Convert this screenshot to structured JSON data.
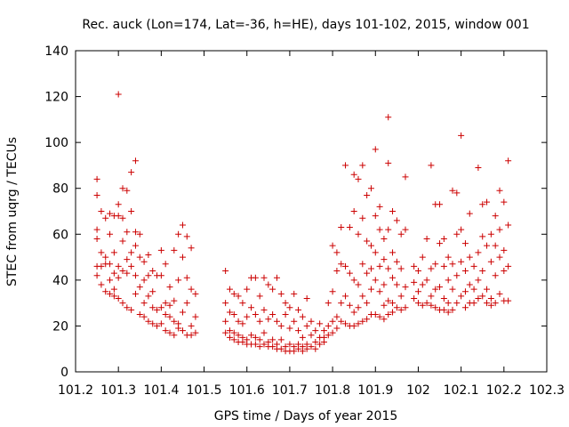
{
  "chart_data": {
    "type": "scatter",
    "title": "Rec. auck (Lon=174, Lat=-36, h=HE), days 101-102, 2015, window 001",
    "xlabel": "GPS time / Days of year 2015",
    "ylabel": "STEC from uqrg / TECUs",
    "xlim": [
      101.2,
      102.3
    ],
    "ylim": [
      0,
      140
    ],
    "xticks": [
      "101.2",
      "101.3",
      "101.4",
      "101.5",
      "101.6",
      "101.7",
      "101.8",
      "101.9",
      "102",
      "102.1",
      "102.2",
      "102.3"
    ],
    "yticks": [
      "0",
      "20",
      "40",
      "60",
      "80",
      "100",
      "120",
      "140"
    ],
    "grid": false,
    "legend": "none",
    "marker": "plus",
    "color": "#cc0000",
    "points": [
      [
        101.25,
        84
      ],
      [
        101.25,
        77
      ],
      [
        101.25,
        62
      ],
      [
        101.25,
        58
      ],
      [
        101.25,
        46
      ],
      [
        101.25,
        42
      ],
      [
        101.26,
        70
      ],
      [
        101.26,
        52
      ],
      [
        101.26,
        46
      ],
      [
        101.26,
        38
      ],
      [
        101.27,
        67
      ],
      [
        101.27,
        50
      ],
      [
        101.27,
        47
      ],
      [
        101.27,
        35
      ],
      [
        101.28,
        69
      ],
      [
        101.28,
        60
      ],
      [
        101.28,
        47
      ],
      [
        101.28,
        40
      ],
      [
        101.28,
        34
      ],
      [
        101.29,
        68
      ],
      [
        101.29,
        52
      ],
      [
        101.29,
        43
      ],
      [
        101.29,
        36
      ],
      [
        101.29,
        33
      ],
      [
        101.3,
        121
      ],
      [
        101.3,
        73
      ],
      [
        101.3,
        68
      ],
      [
        101.3,
        46
      ],
      [
        101.3,
        41
      ],
      [
        101.3,
        32
      ],
      [
        101.31,
        80
      ],
      [
        101.31,
        67
      ],
      [
        101.31,
        57
      ],
      [
        101.31,
        44
      ],
      [
        101.31,
        30
      ],
      [
        101.32,
        79
      ],
      [
        101.32,
        61
      ],
      [
        101.32,
        49
      ],
      [
        101.32,
        43
      ],
      [
        101.32,
        28
      ],
      [
        101.33,
        87
      ],
      [
        101.33,
        70
      ],
      [
        101.33,
        52
      ],
      [
        101.33,
        46
      ],
      [
        101.33,
        27
      ],
      [
        101.34,
        92
      ],
      [
        101.34,
        61
      ],
      [
        101.34,
        55
      ],
      [
        101.34,
        42
      ],
      [
        101.34,
        34
      ],
      [
        101.35,
        60
      ],
      [
        101.35,
        50
      ],
      [
        101.35,
        37
      ],
      [
        101.35,
        25
      ],
      [
        101.36,
        48
      ],
      [
        101.36,
        40
      ],
      [
        101.36,
        30
      ],
      [
        101.36,
        24
      ],
      [
        101.37,
        51
      ],
      [
        101.37,
        42
      ],
      [
        101.37,
        33
      ],
      [
        101.37,
        22
      ],
      [
        101.38,
        44
      ],
      [
        101.38,
        35
      ],
      [
        101.38,
        28
      ],
      [
        101.38,
        21
      ],
      [
        101.39,
        42
      ],
      [
        101.39,
        27
      ],
      [
        101.39,
        20
      ],
      [
        101.4,
        53
      ],
      [
        101.4,
        42
      ],
      [
        101.4,
        28
      ],
      [
        101.4,
        21
      ],
      [
        101.41,
        47
      ],
      [
        101.41,
        30
      ],
      [
        101.41,
        25
      ],
      [
        101.41,
        18
      ],
      [
        101.42,
        37
      ],
      [
        101.42,
        29
      ],
      [
        101.42,
        24
      ],
      [
        101.42,
        17
      ],
      [
        101.43,
        53
      ],
      [
        101.43,
        31
      ],
      [
        101.43,
        22
      ],
      [
        101.43,
        16
      ],
      [
        101.44,
        60
      ],
      [
        101.44,
        40
      ],
      [
        101.44,
        21
      ],
      [
        101.44,
        19
      ],
      [
        101.45,
        64
      ],
      [
        101.45,
        50
      ],
      [
        101.45,
        26
      ],
      [
        101.45,
        18
      ],
      [
        101.46,
        59
      ],
      [
        101.46,
        41
      ],
      [
        101.46,
        30
      ],
      [
        101.46,
        16
      ],
      [
        101.47,
        54
      ],
      [
        101.47,
        36
      ],
      [
        101.47,
        20
      ],
      [
        101.47,
        16
      ],
      [
        101.48,
        34
      ],
      [
        101.48,
        24
      ],
      [
        101.48,
        17
      ],
      [
        101.55,
        44
      ],
      [
        101.55,
        30
      ],
      [
        101.55,
        22
      ],
      [
        101.55,
        17
      ],
      [
        101.56,
        36
      ],
      [
        101.56,
        26
      ],
      [
        101.56,
        18
      ],
      [
        101.56,
        15
      ],
      [
        101.57,
        34
      ],
      [
        101.57,
        25
      ],
      [
        101.57,
        17
      ],
      [
        101.57,
        14
      ],
      [
        101.58,
        33
      ],
      [
        101.58,
        22
      ],
      [
        101.58,
        16
      ],
      [
        101.58,
        13
      ],
      [
        101.59,
        30
      ],
      [
        101.59,
        21
      ],
      [
        101.59,
        15
      ],
      [
        101.59,
        13
      ],
      [
        101.6,
        36
      ],
      [
        101.6,
        24
      ],
      [
        101.6,
        14
      ],
      [
        101.6,
        12
      ],
      [
        101.61,
        41
      ],
      [
        101.61,
        28
      ],
      [
        101.61,
        16
      ],
      [
        101.61,
        12
      ],
      [
        101.62,
        41
      ],
      [
        101.62,
        25
      ],
      [
        101.62,
        15
      ],
      [
        101.62,
        12
      ],
      [
        101.63,
        33
      ],
      [
        101.63,
        22
      ],
      [
        101.63,
        14
      ],
      [
        101.63,
        11
      ],
      [
        101.64,
        41
      ],
      [
        101.64,
        27
      ],
      [
        101.64,
        17
      ],
      [
        101.64,
        12
      ],
      [
        101.65,
        38
      ],
      [
        101.65,
        23
      ],
      [
        101.65,
        13
      ],
      [
        101.65,
        11
      ],
      [
        101.66,
        36
      ],
      [
        101.66,
        25
      ],
      [
        101.66,
        14
      ],
      [
        101.66,
        11
      ],
      [
        101.67,
        41
      ],
      [
        101.67,
        22
      ],
      [
        101.67,
        12
      ],
      [
        101.67,
        10
      ],
      [
        101.68,
        34
      ],
      [
        101.68,
        20
      ],
      [
        101.68,
        14
      ],
      [
        101.68,
        10
      ],
      [
        101.69,
        30
      ],
      [
        101.69,
        25
      ],
      [
        101.69,
        11
      ],
      [
        101.69,
        9
      ],
      [
        101.7,
        28
      ],
      [
        101.7,
        19
      ],
      [
        101.7,
        12
      ],
      [
        101.7,
        9
      ],
      [
        101.71,
        34
      ],
      [
        101.71,
        22
      ],
      [
        101.71,
        11
      ],
      [
        101.71,
        9
      ],
      [
        101.72,
        27
      ],
      [
        101.72,
        18
      ],
      [
        101.72,
        12
      ],
      [
        101.72,
        10
      ],
      [
        101.73,
        24
      ],
      [
        101.73,
        15
      ],
      [
        101.73,
        11
      ],
      [
        101.73,
        9
      ],
      [
        101.74,
        32
      ],
      [
        101.74,
        20
      ],
      [
        101.74,
        12
      ],
      [
        101.74,
        10
      ],
      [
        101.75,
        22
      ],
      [
        101.75,
        16
      ],
      [
        101.75,
        11
      ],
      [
        101.76,
        18
      ],
      [
        101.76,
        13
      ],
      [
        101.76,
        10
      ],
      [
        101.77,
        21
      ],
      [
        101.77,
        15
      ],
      [
        101.77,
        12
      ],
      [
        101.78,
        18
      ],
      [
        101.78,
        15
      ],
      [
        101.78,
        13
      ],
      [
        101.79,
        30
      ],
      [
        101.79,
        20
      ],
      [
        101.79,
        16
      ],
      [
        101.8,
        55
      ],
      [
        101.8,
        35
      ],
      [
        101.8,
        22
      ],
      [
        101.8,
        17
      ],
      [
        101.81,
        52
      ],
      [
        101.81,
        44
      ],
      [
        101.81,
        24
      ],
      [
        101.81,
        19
      ],
      [
        101.82,
        63
      ],
      [
        101.82,
        47
      ],
      [
        101.82,
        30
      ],
      [
        101.82,
        22
      ],
      [
        101.83,
        90
      ],
      [
        101.83,
        46
      ],
      [
        101.83,
        33
      ],
      [
        101.83,
        21
      ],
      [
        101.84,
        63
      ],
      [
        101.84,
        43
      ],
      [
        101.84,
        29
      ],
      [
        101.84,
        20
      ],
      [
        101.85,
        86
      ],
      [
        101.85,
        70
      ],
      [
        101.85,
        40
      ],
      [
        101.85,
        26
      ],
      [
        101.85,
        20
      ],
      [
        101.86,
        84
      ],
      [
        101.86,
        60
      ],
      [
        101.86,
        38
      ],
      [
        101.86,
        28
      ],
      [
        101.86,
        21
      ],
      [
        101.87,
        90
      ],
      [
        101.87,
        67
      ],
      [
        101.87,
        47
      ],
      [
        101.87,
        33
      ],
      [
        101.87,
        22
      ],
      [
        101.88,
        77
      ],
      [
        101.88,
        57
      ],
      [
        101.88,
        43
      ],
      [
        101.88,
        30
      ],
      [
        101.88,
        23
      ],
      [
        101.89,
        80
      ],
      [
        101.89,
        55
      ],
      [
        101.89,
        45
      ],
      [
        101.89,
        36
      ],
      [
        101.89,
        25
      ],
      [
        101.9,
        97
      ],
      [
        101.9,
        68
      ],
      [
        101.9,
        52
      ],
      [
        101.9,
        40
      ],
      [
        101.9,
        25
      ],
      [
        101.91,
        72
      ],
      [
        101.91,
        62
      ],
      [
        101.91,
        46
      ],
      [
        101.91,
        35
      ],
      [
        101.91,
        24
      ],
      [
        101.92,
        58
      ],
      [
        101.92,
        49
      ],
      [
        101.92,
        38
      ],
      [
        101.92,
        29
      ],
      [
        101.92,
        23
      ],
      [
        101.93,
        111
      ],
      [
        101.93,
        91
      ],
      [
        101.93,
        62
      ],
      [
        101.93,
        45
      ],
      [
        101.93,
        31
      ],
      [
        101.93,
        25
      ],
      [
        101.94,
        70
      ],
      [
        101.94,
        52
      ],
      [
        101.94,
        41
      ],
      [
        101.94,
        30
      ],
      [
        101.94,
        26
      ],
      [
        101.95,
        66
      ],
      [
        101.95,
        48
      ],
      [
        101.95,
        38
      ],
      [
        101.95,
        28
      ],
      [
        101.96,
        60
      ],
      [
        101.96,
        45
      ],
      [
        101.96,
        33
      ],
      [
        101.96,
        27
      ],
      [
        101.97,
        85
      ],
      [
        101.97,
        62
      ],
      [
        101.97,
        37
      ],
      [
        101.97,
        28
      ],
      [
        101.99,
        46
      ],
      [
        101.99,
        39
      ],
      [
        101.99,
        32
      ],
      [
        102.0,
        44
      ],
      [
        102.0,
        35
      ],
      [
        102.0,
        30
      ],
      [
        102.01,
        50
      ],
      [
        102.01,
        38
      ],
      [
        102.01,
        29
      ],
      [
        102.02,
        58
      ],
      [
        102.02,
        40
      ],
      [
        102.02,
        30
      ],
      [
        102.03,
        90
      ],
      [
        102.03,
        45
      ],
      [
        102.03,
        33
      ],
      [
        102.03,
        29
      ],
      [
        102.04,
        73
      ],
      [
        102.04,
        47
      ],
      [
        102.04,
        36
      ],
      [
        102.04,
        28
      ],
      [
        102.05,
        73
      ],
      [
        102.05,
        56
      ],
      [
        102.05,
        37
      ],
      [
        102.05,
        27
      ],
      [
        102.06,
        58
      ],
      [
        102.06,
        46
      ],
      [
        102.06,
        32
      ],
      [
        102.06,
        27
      ],
      [
        102.07,
        50
      ],
      [
        102.07,
        40
      ],
      [
        102.07,
        30
      ],
      [
        102.07,
        26
      ],
      [
        102.08,
        79
      ],
      [
        102.08,
        47
      ],
      [
        102.08,
        36
      ],
      [
        102.08,
        27
      ],
      [
        102.09,
        78
      ],
      [
        102.09,
        60
      ],
      [
        102.09,
        42
      ],
      [
        102.09,
        30
      ],
      [
        102.1,
        103
      ],
      [
        102.1,
        62
      ],
      [
        102.1,
        48
      ],
      [
        102.1,
        33
      ],
      [
        102.11,
        56
      ],
      [
        102.11,
        44
      ],
      [
        102.11,
        35
      ],
      [
        102.11,
        28
      ],
      [
        102.12,
        69
      ],
      [
        102.12,
        50
      ],
      [
        102.12,
        38
      ],
      [
        102.12,
        30
      ],
      [
        102.13,
        46
      ],
      [
        102.13,
        36
      ],
      [
        102.13,
        30
      ],
      [
        102.14,
        89
      ],
      [
        102.14,
        52
      ],
      [
        102.14,
        40
      ],
      [
        102.14,
        32
      ],
      [
        102.15,
        73
      ],
      [
        102.15,
        59
      ],
      [
        102.15,
        44
      ],
      [
        102.15,
        33
      ],
      [
        102.16,
        74
      ],
      [
        102.16,
        55
      ],
      [
        102.16,
        36
      ],
      [
        102.16,
        30
      ],
      [
        102.17,
        60
      ],
      [
        102.17,
        48
      ],
      [
        102.17,
        32
      ],
      [
        102.17,
        29
      ],
      [
        102.18,
        68
      ],
      [
        102.18,
        55
      ],
      [
        102.18,
        42
      ],
      [
        102.18,
        30
      ],
      [
        102.19,
        79
      ],
      [
        102.19,
        62
      ],
      [
        102.19,
        50
      ],
      [
        102.19,
        34
      ],
      [
        102.2,
        74
      ],
      [
        102.2,
        53
      ],
      [
        102.2,
        44
      ],
      [
        102.2,
        31
      ],
      [
        102.21,
        92
      ],
      [
        102.21,
        64
      ],
      [
        102.21,
        46
      ],
      [
        102.21,
        31
      ]
    ]
  }
}
